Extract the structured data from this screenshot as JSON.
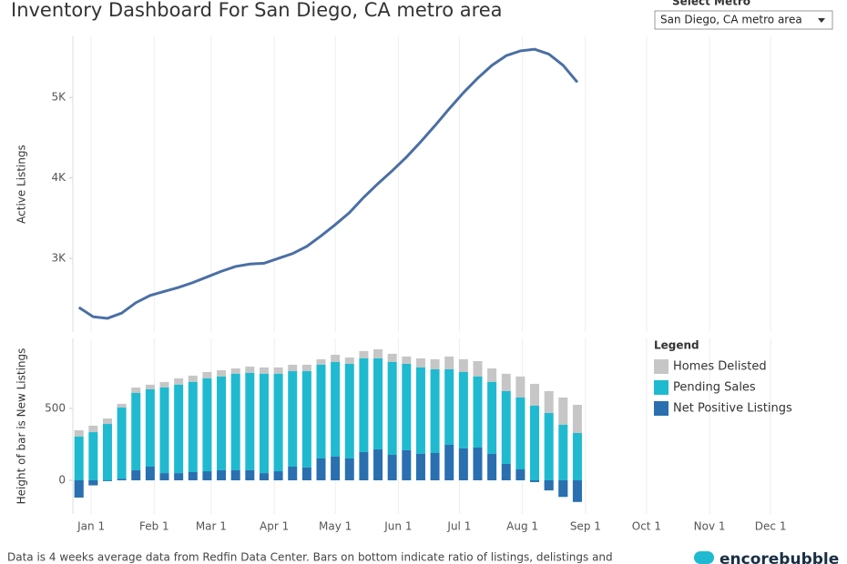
{
  "title": "Inventory Dashboard For San Diego, CA metro area",
  "selector": {
    "label": "Select Metro",
    "value": "San Diego, CA metro area"
  },
  "footer": "Data is 4 weeks average data from Redfin Data Center. Bars on bottom indicate ratio of listings, delistings and",
  "logo": "encorebubble",
  "chart_data": [
    {
      "type": "line",
      "y_label": "Active Listings",
      "x": [
        -6,
        1,
        8,
        15,
        22,
        29,
        36,
        43,
        50,
        57,
        64,
        71,
        78,
        85,
        92,
        99,
        106,
        113,
        120,
        127,
        134,
        141,
        148,
        155,
        162,
        169,
        176,
        183,
        190,
        197,
        204,
        211,
        218,
        225,
        232,
        239
      ],
      "series": [
        {
          "name": "Active Listings",
          "color": "#4a6fa5",
          "values": [
            2390,
            2275,
            2255,
            2320,
            2450,
            2540,
            2590,
            2640,
            2700,
            2770,
            2840,
            2900,
            2930,
            2940,
            3000,
            3060,
            3150,
            3280,
            3420,
            3570,
            3760,
            3930,
            4090,
            4260,
            4450,
            4650,
            4860,
            5060,
            5240,
            5400,
            5520,
            5580,
            5600,
            5540,
            5400,
            5190
          ]
        }
      ],
      "xlim": [
        -9,
        362.6
      ],
      "ylim": [
        2085,
        5760
      ],
      "yticks": [
        {
          "value": 3000,
          "label": "3K"
        },
        {
          "value": 4000,
          "label": "4K"
        },
        {
          "value": 5000,
          "label": "5K"
        }
      ],
      "grid": true
    },
    {
      "type": "stacked_bar",
      "y_label": "Height of bar is New Listings",
      "legend_title": "Legend",
      "legend": "right",
      "x": [
        -6,
        1,
        8,
        15,
        22,
        29,
        36,
        43,
        50,
        57,
        64,
        71,
        78,
        85,
        92,
        99,
        106,
        113,
        120,
        127,
        134,
        141,
        148,
        155,
        162,
        169,
        176,
        183,
        190,
        197,
        204,
        211,
        218,
        225,
        232,
        239
      ],
      "series": [
        {
          "name": "Homes Delisted",
          "color": "#c6c6c6",
          "values": [
            44,
            45,
            38,
            26,
            37,
            32,
            38,
            44,
            44,
            44,
            44,
            37,
            44,
            44,
            44,
            45,
            45,
            38,
            50,
            44,
            51,
            63,
            57,
            51,
            63,
            70,
            89,
            89,
            107,
            94,
            121,
            146,
            152,
            152,
            190,
            196
          ]
        },
        {
          "name": "Pending Sales",
          "color": "#1fbad0",
          "values": [
            424,
            370,
            397,
            496,
            538,
            538,
            596,
            615,
            627,
            646,
            652,
            671,
            677,
            691,
            678,
            664,
            670,
            652,
            658,
            658,
            652,
            633,
            646,
            601,
            601,
            582,
            525,
            531,
            494,
            500,
            506,
            500,
            531,
            538,
            501,
            479
          ]
        },
        {
          "name": "Net Positive Listings",
          "color": "#2a6fb0",
          "values": [
            -120,
            -35,
            -5,
            10,
            70,
            95,
            50,
            50,
            57,
            63,
            70,
            70,
            70,
            50,
            63,
            95,
            89,
            152,
            165,
            152,
            196,
            215,
            177,
            209,
            184,
            190,
            247,
            222,
            228,
            184,
            114,
            76,
            -12,
            -70,
            -115,
            -150
          ]
        }
      ],
      "xlim": [
        -9,
        362.6
      ],
      "ylim": [
        -234,
        987
      ],
      "yticks": [
        0,
        500
      ],
      "xticks": [
        {
          "value": 0,
          "label": "Jan 1"
        },
        {
          "value": 31,
          "label": "Feb 1"
        },
        {
          "value": 59,
          "label": "Mar 1"
        },
        {
          "value": 90,
          "label": "Apr 1"
        },
        {
          "value": 120,
          "label": "May 1"
        },
        {
          "value": 151,
          "label": "Jun 1"
        },
        {
          "value": 181,
          "label": "Jul 1"
        },
        {
          "value": 212,
          "label": "Aug 1"
        },
        {
          "value": 243,
          "label": "Sep 1"
        },
        {
          "value": 273,
          "label": "Oct 1"
        },
        {
          "value": 304,
          "label": "Nov 1"
        },
        {
          "value": 334,
          "label": "Dec 1"
        }
      ]
    }
  ]
}
